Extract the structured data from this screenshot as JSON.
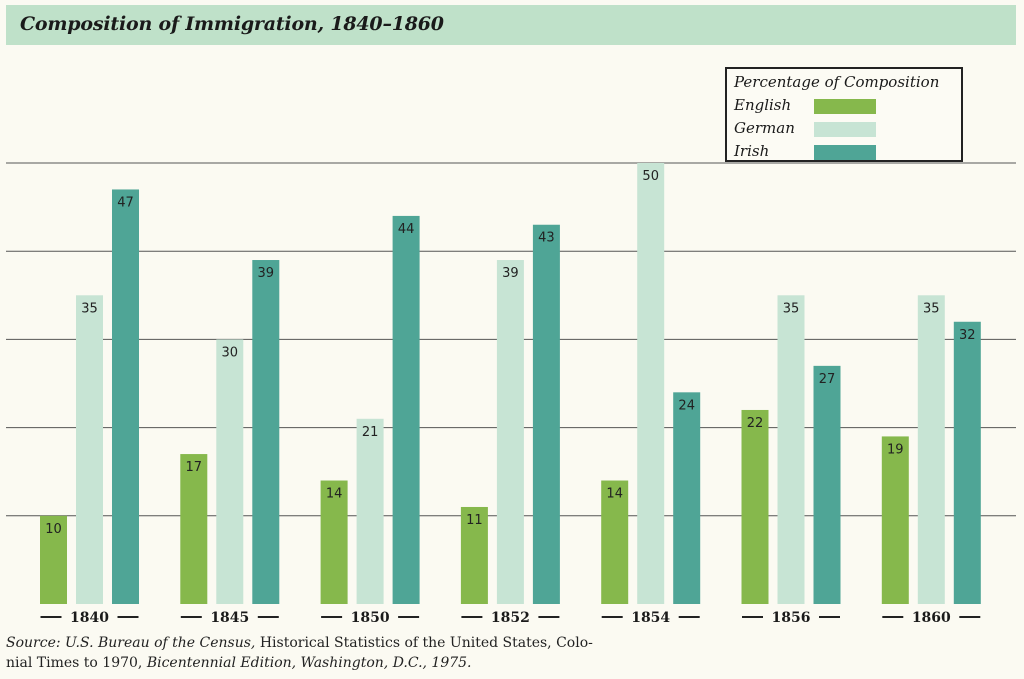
{
  "chart_data": {
    "type": "bar",
    "title": "Composition of Immigration, 1840–1860",
    "categories": [
      "1840",
      "1845",
      "1850",
      "1852",
      "1854",
      "1856",
      "1860"
    ],
    "series": [
      {
        "name": "English",
        "color": "#86b84c",
        "values": [
          10,
          17,
          14,
          11,
          14,
          22,
          19
        ]
      },
      {
        "name": "German",
        "color": "#c7e4d4",
        "values": [
          35,
          30,
          21,
          39,
          50,
          35,
          35
        ]
      },
      {
        "name": "Irish",
        "color": "#4fa596",
        "values": [
          47,
          39,
          44,
          43,
          24,
          27,
          32
        ]
      }
    ],
    "legend_title": "Percentage of Composition",
    "ylim": [
      0,
      50
    ],
    "gridlines": [
      10,
      20,
      30,
      40,
      50
    ],
    "xlabel": "",
    "ylabel": ""
  },
  "source": {
    "prefix": "Source:",
    "agency": "U.S. Bureau of the Census,",
    "book": "Historical Statistics of the United States, Colo-",
    "book_cont": "nial Times to 1970,",
    "edition": "Bicentennial Edition, Washington, D.C., 1975."
  }
}
